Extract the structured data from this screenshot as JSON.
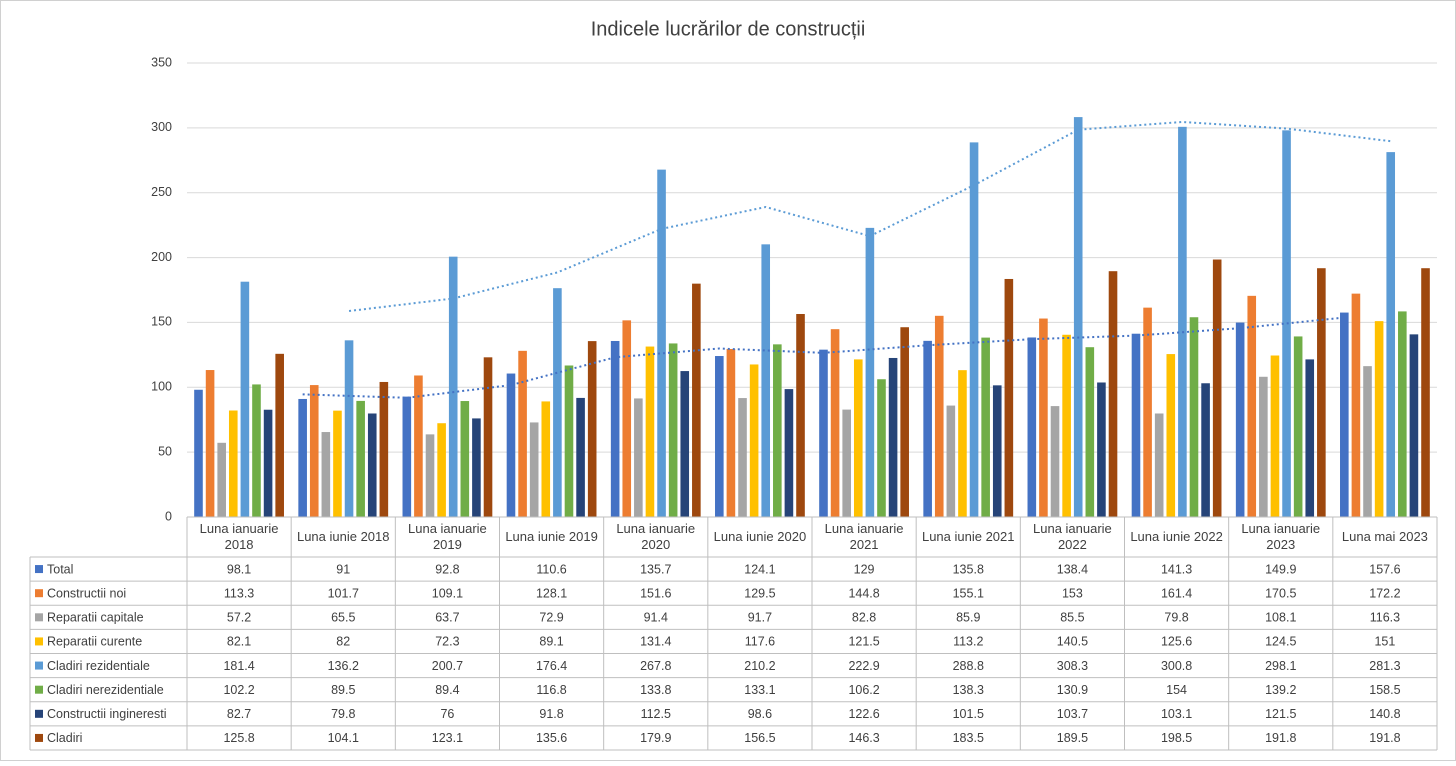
{
  "chart_data": {
    "type": "bar",
    "title": "Indicele lucrărilor de construcții",
    "categories": [
      "Luna ianuarie 2018",
      "Luna iunie 2018",
      "Luna ianuarie 2019",
      "Luna iunie 2019",
      "Luna ianuarie 2020",
      "Luna iunie 2020",
      "Luna ianuarie 2021",
      "Luna iunie 2021",
      "Luna ianuarie 2022",
      "Luna iunie 2022",
      "Luna ianuarie 2023",
      "Luna mai 2023"
    ],
    "series": [
      {
        "name": "Total",
        "color": "#4472c4",
        "values": [
          98.1,
          91,
          92.8,
          110.6,
          135.7,
          124.1,
          129,
          135.8,
          138.4,
          141.3,
          149.9,
          157.6
        ]
      },
      {
        "name": "Constructii noi",
        "color": "#ed7d31",
        "values": [
          113.3,
          101.7,
          109.1,
          128.1,
          151.6,
          129.5,
          144.8,
          155.1,
          153,
          161.4,
          170.5,
          172.2
        ]
      },
      {
        "name": "Reparatii capitale",
        "color": "#a5a5a5",
        "values": [
          57.2,
          65.5,
          63.7,
          72.9,
          91.4,
          91.7,
          82.8,
          85.9,
          85.5,
          79.8,
          108.1,
          116.3
        ]
      },
      {
        "name": "Reparatii curente",
        "color": "#ffc000",
        "values": [
          82.1,
          82,
          72.3,
          89.1,
          131.4,
          117.6,
          121.5,
          113.2,
          140.5,
          125.6,
          124.5,
          151
        ]
      },
      {
        "name": "Cladiri rezidentiale",
        "color": "#5b9bd5",
        "values": [
          181.4,
          136.2,
          200.7,
          176.4,
          267.8,
          210.2,
          222.9,
          288.8,
          308.3,
          300.8,
          298.1,
          281.3
        ]
      },
      {
        "name": "Cladiri nerezidentiale",
        "color": "#70ad47",
        "values": [
          102.2,
          89.5,
          89.4,
          116.8,
          133.8,
          133.1,
          106.2,
          138.3,
          130.9,
          154,
          139.2,
          158.5
        ]
      },
      {
        "name": "Constructii ingineresti",
        "color": "#264478",
        "values": [
          82.7,
          79.8,
          76,
          91.8,
          112.5,
          98.6,
          122.6,
          101.5,
          103.7,
          103.1,
          121.5,
          140.8
        ]
      },
      {
        "name": "Cladiri",
        "color": "#9e480e",
        "values": [
          125.8,
          104.1,
          123.1,
          135.6,
          179.9,
          156.5,
          146.3,
          183.5,
          189.5,
          198.5,
          191.8,
          191.8
        ]
      }
    ],
    "ylim": [
      0,
      350
    ],
    "yticks": [
      0,
      50,
      100,
      150,
      200,
      250,
      300,
      350
    ],
    "grid": true,
    "trendlines": [
      {
        "series": 0,
        "type": "moving_average",
        "period": 2
      },
      {
        "series": 4,
        "type": "moving_average",
        "period": 2
      }
    ],
    "legend": "data-table"
  }
}
